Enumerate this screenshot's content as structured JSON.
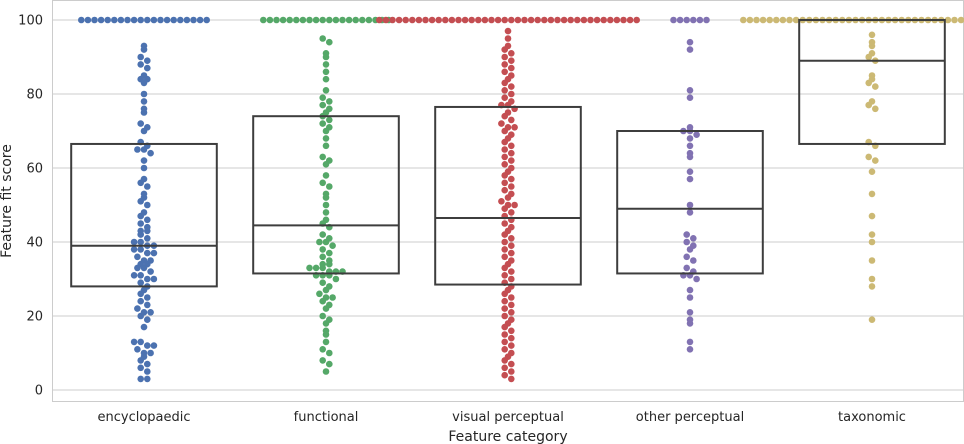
{
  "chart_data": {
    "type": "box+swarm",
    "xlabel": "Feature category",
    "ylabel": "Feature fit score",
    "ylim": [
      0,
      100
    ],
    "yticks": [
      0,
      20,
      40,
      60,
      80,
      100
    ],
    "grid": true,
    "categories": [
      {
        "label": "encyclopaedic",
        "color": "#4c72b0",
        "box": {
          "q1": 28,
          "median": 39,
          "q3": 66.5
        },
        "points": [
          100,
          100,
          100,
          100,
          100,
          100,
          100,
          100,
          100,
          100,
          100,
          100,
          100,
          100,
          100,
          100,
          100,
          100,
          100,
          100,
          93,
          92,
          90,
          89,
          88,
          87,
          85,
          84,
          84,
          83,
          80,
          78,
          76,
          75,
          72,
          71,
          70,
          67,
          66,
          65,
          65,
          64,
          62,
          60,
          57,
          56,
          55,
          53,
          52,
          51,
          50,
          48,
          47,
          46,
          45,
          44,
          43,
          43,
          42,
          41,
          40,
          40,
          39,
          39,
          38,
          38,
          37,
          37,
          36,
          35,
          35,
          34,
          34,
          33,
          33,
          32,
          31,
          31,
          30,
          30,
          29,
          28,
          27,
          26,
          25,
          24,
          23,
          22,
          21,
          21,
          20,
          19,
          17,
          13,
          13,
          12,
          12,
          11,
          10,
          10,
          9,
          8,
          7,
          6,
          5,
          3,
          3
        ]
      },
      {
        "label": "functional",
        "color": "#55a868",
        "box": {
          "q1": 31.5,
          "median": 44.5,
          "q3": 74
        },
        "points": [
          100,
          100,
          100,
          100,
          100,
          100,
          100,
          100,
          100,
          100,
          100,
          100,
          100,
          100,
          100,
          100,
          100,
          100,
          100,
          100,
          95,
          94,
          91,
          90,
          88,
          86,
          84,
          81,
          79,
          78,
          77,
          76,
          75,
          74,
          73,
          72,
          71,
          70,
          68,
          66,
          63,
          62,
          61,
          58,
          56,
          55,
          53,
          52,
          50,
          48,
          46,
          45,
          44,
          42,
          41,
          40,
          40,
          39,
          38,
          37,
          36,
          35,
          34,
          34,
          33,
          33,
          33,
          32,
          32,
          32,
          31,
          31,
          31,
          30,
          29,
          28,
          27,
          26,
          25,
          25,
          24,
          23,
          22,
          20,
          19,
          18,
          16,
          15,
          13,
          11,
          10,
          8,
          7,
          5
        ]
      },
      {
        "label": "visual perceptual",
        "color": "#c44e52",
        "box": {
          "q1": 28.5,
          "median": 46.5,
          "q3": 76.5
        },
        "points": [
          100,
          100,
          100,
          100,
          100,
          100,
          100,
          100,
          100,
          100,
          100,
          100,
          100,
          100,
          100,
          100,
          100,
          100,
          100,
          100,
          100,
          100,
          100,
          100,
          100,
          100,
          100,
          100,
          100,
          100,
          100,
          100,
          100,
          100,
          100,
          100,
          100,
          100,
          100,
          100,
          97,
          95,
          93,
          92,
          91,
          90,
          89,
          88,
          87,
          86,
          85,
          84,
          83,
          82,
          81,
          80,
          79,
          78,
          77,
          77,
          76,
          75,
          74,
          73,
          72,
          71,
          71,
          70,
          69,
          68,
          67,
          66,
          65,
          64,
          63,
          62,
          61,
          60,
          59,
          58,
          57,
          56,
          55,
          54,
          53,
          52,
          51,
          50,
          50,
          49,
          48,
          47,
          46,
          45,
          44,
          43,
          42,
          41,
          40,
          39,
          38,
          37,
          36,
          35,
          34,
          33,
          32,
          31,
          30,
          29,
          28,
          27,
          26,
          25,
          24,
          23,
          22,
          21,
          20,
          19,
          18,
          17,
          16,
          15,
          14,
          13,
          12,
          11,
          10,
          9,
          8,
          7,
          6,
          5,
          4,
          3
        ]
      },
      {
        "label": "other perceptual",
        "color": "#8172b2",
        "box": {
          "q1": 31.5,
          "median": 49,
          "q3": 70
        },
        "points": [
          100,
          100,
          100,
          100,
          100,
          100,
          94,
          92,
          81,
          79,
          71,
          70,
          70,
          69,
          68,
          66,
          64,
          63,
          59,
          57,
          50,
          48,
          42,
          41,
          40,
          39,
          38,
          36,
          35,
          33,
          32,
          31,
          31,
          30,
          27,
          25,
          21,
          19,
          18,
          13,
          11
        ]
      },
      {
        "label": "taxonomic",
        "color": "#ccb974",
        "box": {
          "q1": 66.5,
          "median": 89,
          "q3": 100
        },
        "points": [
          100,
          100,
          100,
          100,
          100,
          100,
          100,
          100,
          100,
          100,
          100,
          100,
          100,
          100,
          100,
          100,
          100,
          100,
          100,
          100,
          100,
          100,
          100,
          100,
          100,
          100,
          100,
          100,
          100,
          100,
          100,
          100,
          100,
          100,
          100,
          100,
          100,
          100,
          100,
          100,
          96,
          94,
          93,
          91,
          90,
          89,
          85,
          84,
          83,
          82,
          78,
          77,
          76,
          67,
          66,
          63,
          62,
          59,
          53,
          47,
          42,
          40,
          35,
          30,
          28,
          19
        ]
      }
    ]
  }
}
